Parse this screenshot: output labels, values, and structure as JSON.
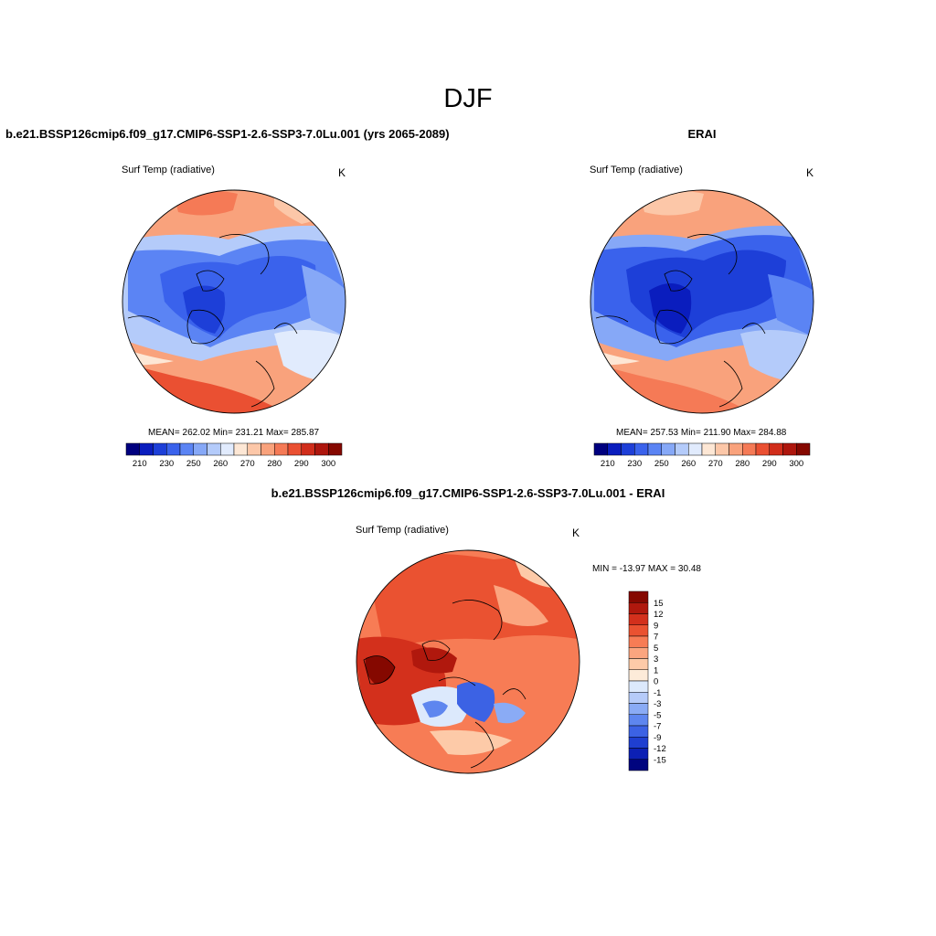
{
  "main_title": "DJF",
  "panels": {
    "left": {
      "title": "b.e21.BSSP126cmip6.f09_g17.CMIP6-SSP1-2.6-SSP3-7.0Lu.001 (yrs 2065-2089)",
      "variable": "Surf Temp (radiative)",
      "units": "K",
      "stats": "MEAN= 262.02  Min= 231.21  Max= 285.87"
    },
    "right": {
      "title": "ERAI",
      "variable": "Surf Temp (radiative)",
      "units": "K",
      "stats": "MEAN= 257.53  Min= 211.90  Max= 284.88"
    },
    "diff": {
      "title": "b.e21.BSSP126cmip6.f09_g17.CMIP6-SSP1-2.6-SSP3-7.0Lu.001 - ERAI",
      "variable": "Surf Temp (radiative)",
      "units": "K",
      "stats": "MIN = -13.97 MAX =  30.48"
    }
  },
  "colorbar_abs": {
    "colors": [
      "#00007f",
      "#0a1dbe",
      "#1d3fd8",
      "#3a62ec",
      "#5b84f4",
      "#86a8f7",
      "#b4cbfa",
      "#e1ebfd",
      "#fde7d5",
      "#fcc7a8",
      "#f9a27c",
      "#f57a56",
      "#ea5032",
      "#d12d1b",
      "#ae160d",
      "#850800"
    ],
    "tick_labels": [
      "210",
      "230",
      "250",
      "260",
      "270",
      "280",
      "290",
      "300"
    ]
  },
  "colorbar_diff": {
    "colors": [
      "#850800",
      "#b0180d",
      "#d3301c",
      "#ea5231",
      "#f77c55",
      "#fba57f",
      "#fdcaa8",
      "#fdebd9",
      "#dce9fc",
      "#b6cbf9",
      "#8aabf5",
      "#5e86ef",
      "#3c62e4",
      "#1f3fd0",
      "#0c20b4",
      "#00047f"
    ],
    "tick_labels": [
      "15",
      "12",
      "9",
      "7",
      "5",
      "3",
      "1",
      "0",
      "-1",
      "-3",
      "-5",
      "-7",
      "-9",
      "-12",
      "-15"
    ]
  }
}
